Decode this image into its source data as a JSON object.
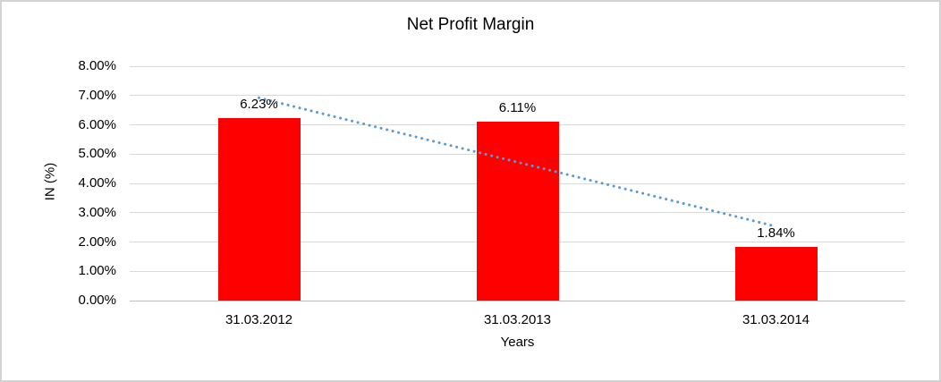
{
  "chart_data": {
    "type": "bar",
    "title": "Net Profit Margin",
    "categories": [
      "31.03.2012",
      "31.03.2013",
      "31.03.2014"
    ],
    "values": [
      6.23,
      6.11,
      1.84
    ],
    "data_labels": [
      "6.23%",
      "6.11%",
      "1.84%"
    ],
    "xlabel": "Years",
    "ylabel": "IN (%)",
    "ylim": [
      0,
      8
    ],
    "ytick_step": 1,
    "ytick_labels": [
      "0.00%",
      "1.00%",
      "2.00%",
      "3.00%",
      "4.00%",
      "5.00%",
      "6.00%",
      "7.00%",
      "8.00%"
    ],
    "grid": true,
    "legend": false,
    "bar_color": "#FF0000",
    "trendline": {
      "type": "linear",
      "style": "dotted",
      "color": "#5B9BD5",
      "start_value": 6.92,
      "end_value": 2.53
    },
    "colors": {
      "gridline": "#D9D9D9",
      "axis_line": "#BFBFBF",
      "text": "#000000",
      "background": "#FFFFFF",
      "border": "#D3D3D3"
    }
  }
}
